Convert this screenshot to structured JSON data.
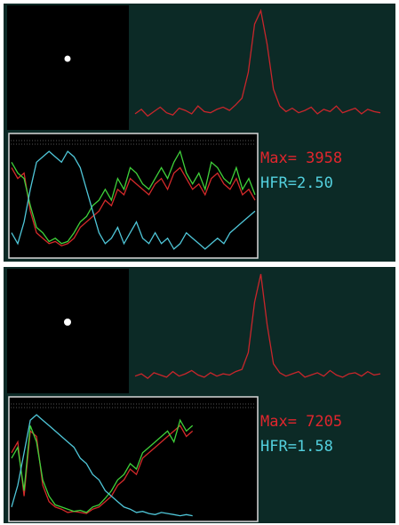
{
  "panels": [
    {
      "max_label": "Max= 3958",
      "hfr_label": "HFR=2.50",
      "profile": {
        "color": "#c8262b",
        "values": [
          8,
          12,
          6,
          10,
          14,
          9,
          7,
          13,
          11,
          8,
          15,
          10,
          9,
          12,
          14,
          11,
          16,
          22,
          45,
          88,
          100,
          70,
          30,
          15,
          10,
          13,
          9,
          11,
          14,
          8,
          12,
          10,
          15,
          9,
          11,
          13,
          8,
          12,
          10,
          9
        ]
      },
      "history": [
        {
          "color": "#d42a2a",
          "values": [
            80,
            70,
            75,
            40,
            20,
            15,
            10,
            12,
            8,
            10,
            15,
            25,
            30,
            35,
            40,
            50,
            45,
            60,
            55,
            70,
            65,
            60,
            55,
            65,
            70,
            60,
            75,
            80,
            70,
            60,
            65,
            55,
            70,
            75,
            65,
            60,
            70,
            55,
            60,
            50
          ]
        },
        {
          "color": "#3fd13a",
          "values": [
            85,
            75,
            70,
            45,
            25,
            20,
            12,
            15,
            10,
            12,
            20,
            30,
            35,
            45,
            50,
            60,
            50,
            70,
            60,
            80,
            75,
            65,
            60,
            70,
            80,
            70,
            85,
            95,
            75,
            65,
            75,
            60,
            85,
            80,
            70,
            65,
            80,
            60,
            70,
            55
          ]
        },
        {
          "color": "#4fc6d8",
          "values": [
            20,
            10,
            30,
            60,
            85,
            90,
            95,
            90,
            85,
            95,
            90,
            80,
            60,
            40,
            20,
            10,
            15,
            25,
            10,
            20,
            30,
            15,
            10,
            20,
            10,
            15,
            5,
            10,
            20,
            15,
            10,
            5,
            10,
            15,
            10,
            20,
            25,
            30,
            35,
            40
          ]
        }
      ]
    },
    {
      "max_label": "Max= 7205",
      "hfr_label": "HFR=1.58",
      "profile": {
        "color": "#c8262b",
        "values": [
          9,
          11,
          7,
          12,
          10,
          8,
          13,
          9,
          11,
          14,
          10,
          8,
          12,
          9,
          11,
          10,
          13,
          15,
          30,
          75,
          100,
          55,
          20,
          12,
          9,
          11,
          13,
          8,
          10,
          12,
          9,
          14,
          10,
          8,
          11,
          12,
          9,
          13,
          10,
          11
        ]
      },
      "history": [
        {
          "color": "#d42a2a",
          "values": [
            60,
            70,
            20,
            80,
            75,
            30,
            15,
            10,
            8,
            5,
            6,
            5,
            4,
            8,
            10,
            15,
            20,
            30,
            35,
            45,
            40,
            55,
            60,
            65,
            70,
            75,
            80,
            85,
            75,
            80
          ]
        },
        {
          "color": "#3fd13a",
          "values": [
            55,
            65,
            25,
            85,
            70,
            35,
            20,
            12,
            10,
            8,
            6,
            7,
            5,
            10,
            12,
            18,
            25,
            35,
            40,
            50,
            45,
            60,
            65,
            70,
            75,
            80,
            70,
            90,
            80,
            85
          ]
        },
        {
          "color": "#4fc6d8",
          "values": [
            10,
            30,
            60,
            90,
            95,
            90,
            85,
            80,
            75,
            70,
            65,
            55,
            50,
            40,
            35,
            25,
            20,
            15,
            10,
            8,
            5,
            6,
            4,
            3,
            5,
            4,
            3,
            2,
            3,
            2
          ]
        }
      ]
    }
  ]
}
